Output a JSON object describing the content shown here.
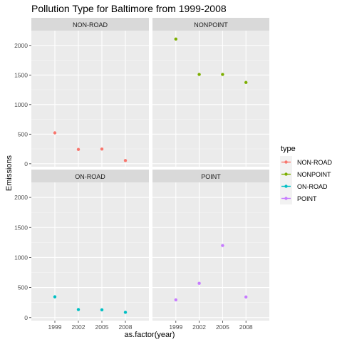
{
  "chart_data": {
    "type": "scatter",
    "title": "Pollution Type for Baltimore from 1999-2008",
    "xlabel": "as.factor(year)",
    "ylabel": "Emissions",
    "categories": [
      "1999",
      "2002",
      "2005",
      "2008"
    ],
    "y_ticks": [
      0,
      500,
      1000,
      1500,
      2000
    ],
    "ylim": [
      -50,
      2250
    ],
    "grid": true,
    "legend": {
      "title": "type",
      "placement": "right",
      "entries": [
        "NON-ROAD",
        "NONPOINT",
        "ON-ROAD",
        "POINT"
      ]
    },
    "panels": [
      {
        "name": "NON-ROAD",
        "color": "#F8766D",
        "values": [
          522,
          242,
          249,
          55
        ]
      },
      {
        "name": "NONPOINT",
        "color": "#7CAE00",
        "values": [
          2108,
          1510,
          1510,
          1374
        ]
      },
      {
        "name": "ON-ROAD",
        "color": "#00BFC4",
        "values": [
          347,
          134,
          130,
          88
        ]
      },
      {
        "name": "POINT",
        "color": "#C77CFF",
        "values": [
          296,
          570,
          1200,
          344
        ]
      }
    ]
  }
}
